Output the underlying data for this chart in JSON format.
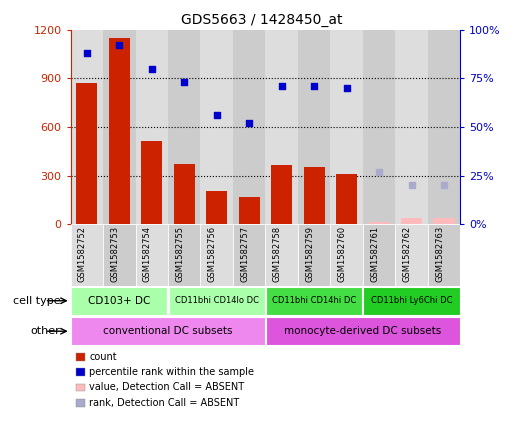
{
  "title": "GDS5663 / 1428450_at",
  "samples": [
    "GSM1582752",
    "GSM1582753",
    "GSM1582754",
    "GSM1582755",
    "GSM1582756",
    "GSM1582757",
    "GSM1582758",
    "GSM1582759",
    "GSM1582760",
    "GSM1582761",
    "GSM1582762",
    "GSM1582763"
  ],
  "counts": [
    870,
    1150,
    510,
    370,
    205,
    165,
    365,
    355,
    310,
    15,
    40,
    40
  ],
  "counts_absent": [
    false,
    false,
    false,
    false,
    false,
    false,
    false,
    false,
    false,
    true,
    true,
    true
  ],
  "ranks": [
    88,
    92,
    80,
    73,
    56,
    52,
    71,
    71,
    70,
    null,
    null,
    null
  ],
  "ranks_absent": [
    null,
    null,
    null,
    null,
    null,
    null,
    null,
    null,
    null,
    27,
    20,
    20
  ],
  "ylim_left": [
    0,
    1200
  ],
  "ylim_right": [
    0,
    100
  ],
  "yticks_left": [
    0,
    300,
    600,
    900,
    1200
  ],
  "yticks_right": [
    0,
    25,
    50,
    75,
    100
  ],
  "yticklabels_left": [
    "0",
    "300",
    "600",
    "900",
    "1200"
  ],
  "yticklabels_right": [
    "0%",
    "25%",
    "50%",
    "75%",
    "100%"
  ],
  "bar_color": "#cc2200",
  "bar_absent_color": "#ffbbbb",
  "dot_color": "#0000cc",
  "dot_absent_color": "#aaaacc",
  "cell_type_groups": [
    {
      "label": "CD103+ DC",
      "start": 0,
      "end": 2,
      "color": "#aaffaa"
    },
    {
      "label": "CD11bhi CD14lo DC",
      "start": 3,
      "end": 5,
      "color": "#aaffaa"
    },
    {
      "label": "CD11bhi CD14hi DC",
      "start": 6,
      "end": 8,
      "color": "#44dd44"
    },
    {
      "label": "CD11bhi Ly6Chi DC",
      "start": 9,
      "end": 11,
      "color": "#22cc22"
    }
  ],
  "other_groups": [
    {
      "label": "conventional DC subsets",
      "start": 0,
      "end": 5,
      "color": "#ee88ee"
    },
    {
      "label": "monocyte-derived DC subsets",
      "start": 6,
      "end": 11,
      "color": "#dd55dd"
    }
  ],
  "cell_type_label": "cell type",
  "other_label": "other",
  "legend_items": [
    {
      "label": "count",
      "color": "#cc2200"
    },
    {
      "label": "percentile rank within the sample",
      "color": "#0000cc"
    },
    {
      "label": "value, Detection Call = ABSENT",
      "color": "#ffbbbb"
    },
    {
      "label": "rank, Detection Call = ABSENT",
      "color": "#aaaacc"
    }
  ],
  "grid_color": "#000000",
  "background_color": "#ffffff",
  "plot_bg_color": "#ffffff",
  "col_bg_even": "#dddddd",
  "col_bg_odd": "#cccccc",
  "left_axis_color": "#cc2200",
  "right_axis_color": "#0000cc"
}
